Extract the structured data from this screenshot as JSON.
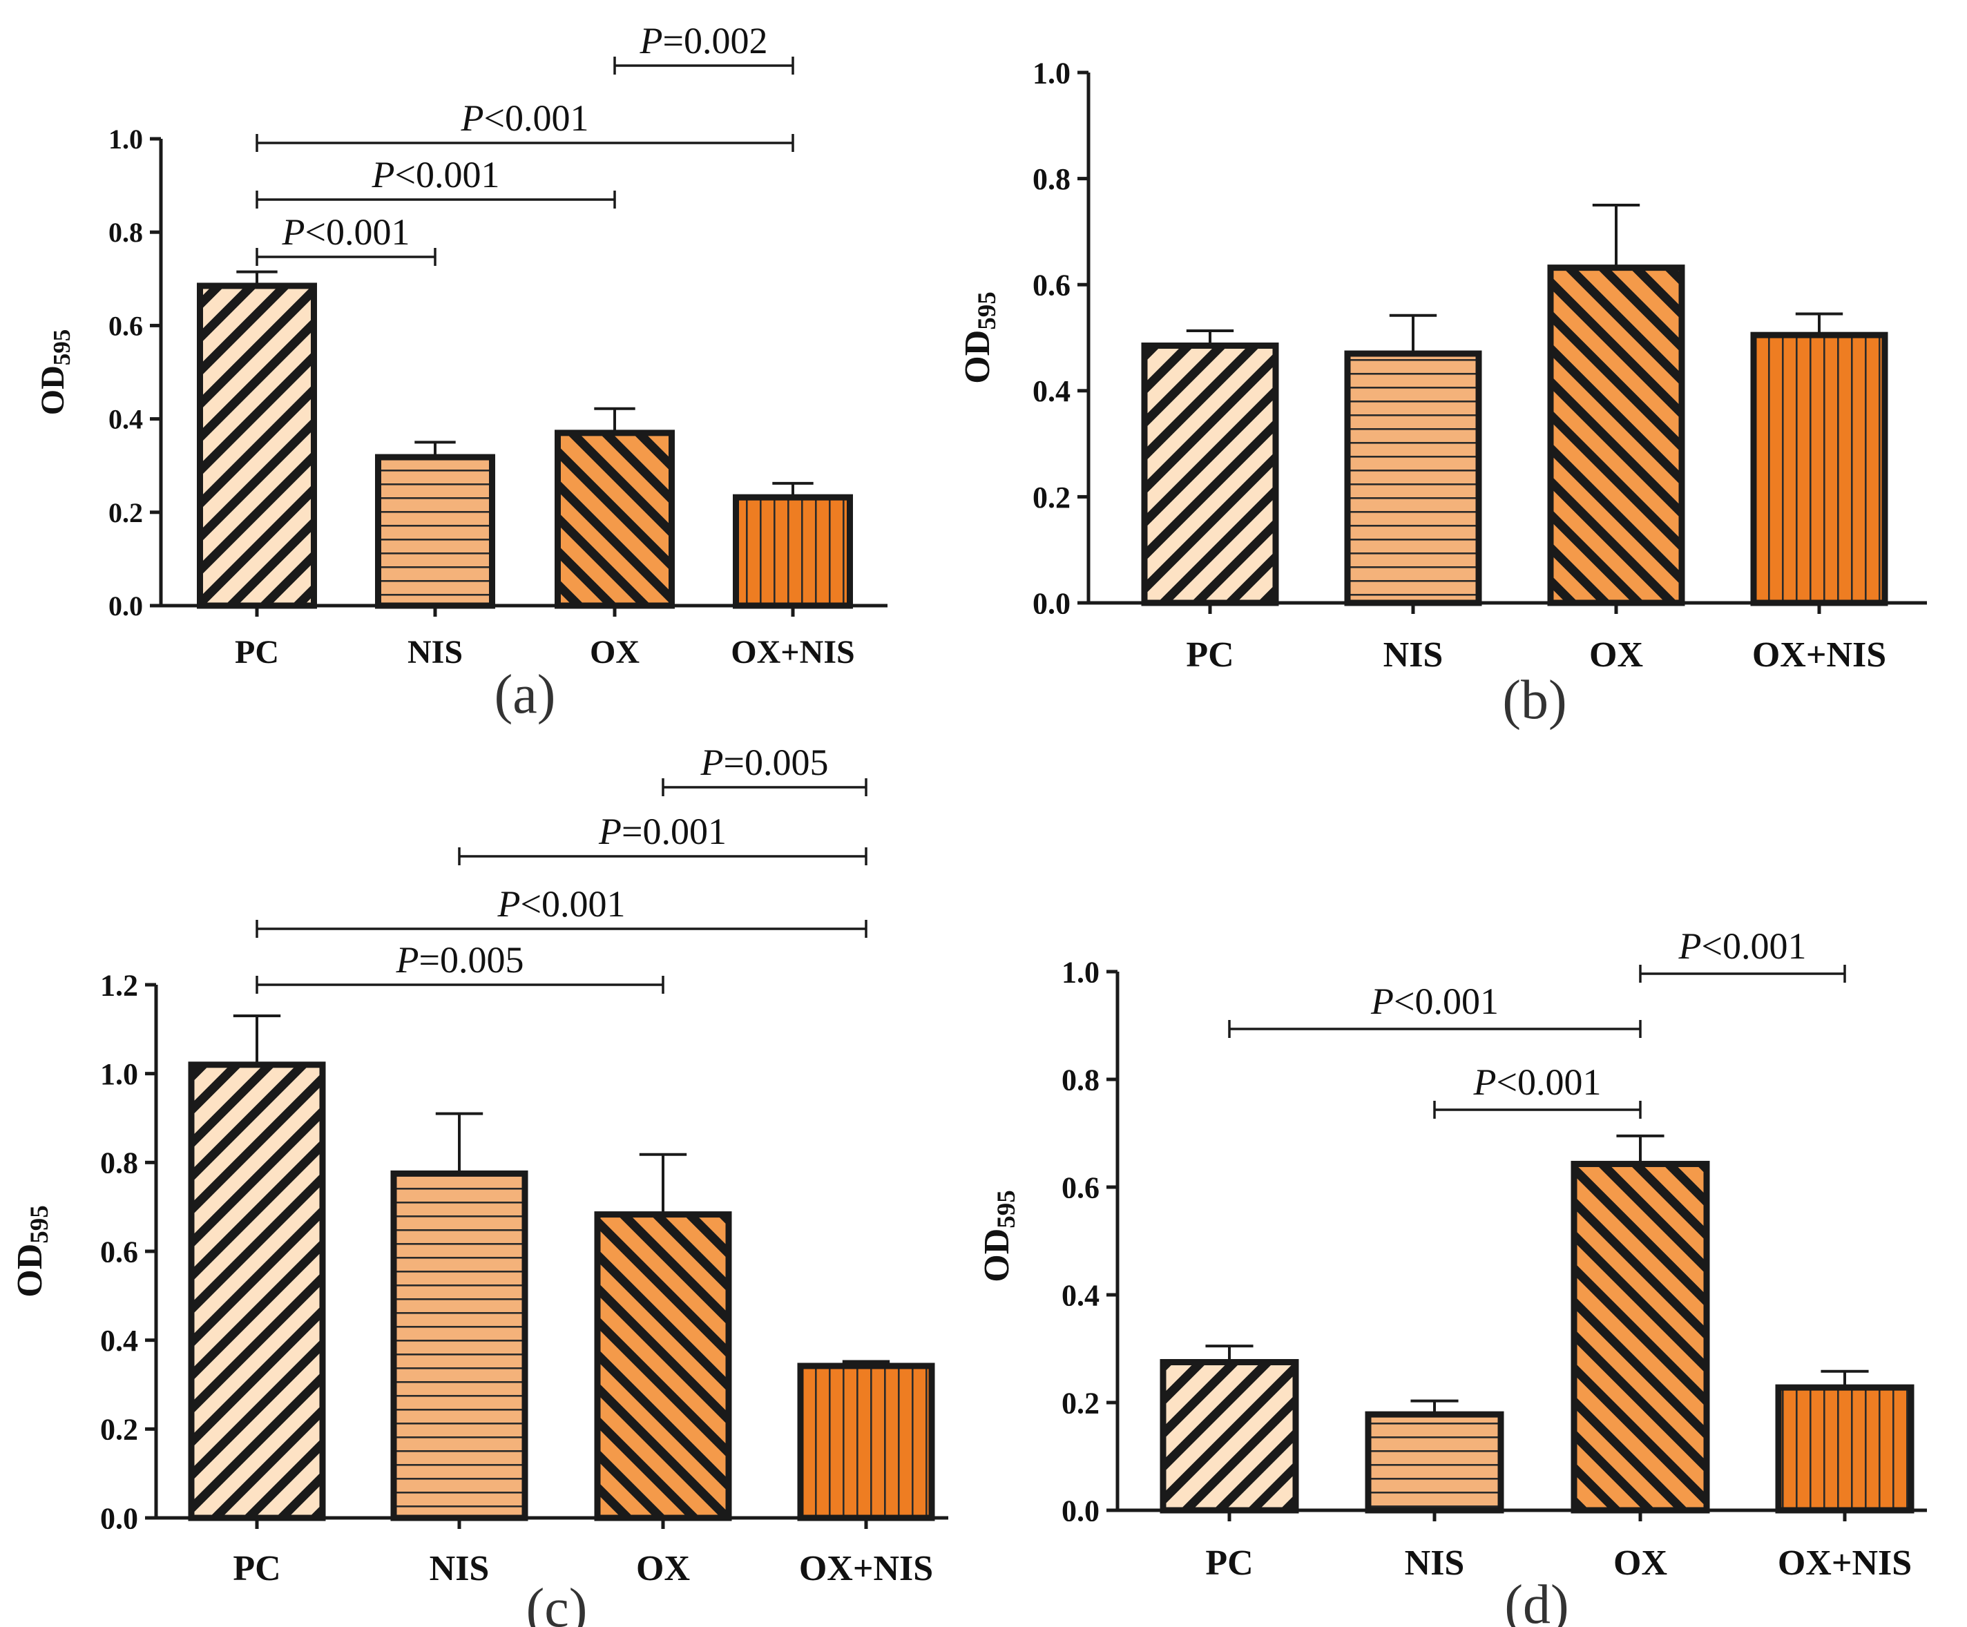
{
  "colors": {
    "light": "#fde2c4",
    "medium": "#f4b27a",
    "dark": "#f49a4a",
    "orange": "#ee7d22",
    "stroke": "#1a1a1a"
  },
  "chart_data": [
    {
      "panel": "(a)",
      "type": "bar",
      "ylabel": "OD",
      "ylabel_sub": "595",
      "ylim": [
        0,
        1.0
      ],
      "yticks": [
        0.0,
        0.2,
        0.4,
        0.6,
        0.8,
        1.0
      ],
      "ytick_labels": [
        "0.0",
        "0.2",
        "0.4",
        "0.6",
        "0.8",
        "1.0"
      ],
      "categories": [
        "PC",
        "NIS",
        "OX",
        "OX+NIS"
      ],
      "values": [
        0.685,
        0.318,
        0.37,
        0.232
      ],
      "errors": [
        0.03,
        0.032,
        0.052,
        0.03
      ],
      "brackets": [
        {
          "from": 0,
          "to": 1,
          "p": "P",
          "text": "<0.001"
        },
        {
          "from": 0,
          "to": 2,
          "p": "P",
          "text": "<0.001"
        },
        {
          "from": 0,
          "to": 3,
          "p": "P",
          "text": "<0.001"
        },
        {
          "from": 2,
          "to": 3,
          "p": "P",
          "text": "=0.002"
        }
      ]
    },
    {
      "panel": "(b)",
      "type": "bar",
      "ylabel": "OD",
      "ylabel_sub": "595",
      "ylim": [
        0,
        1.0
      ],
      "yticks": [
        0.0,
        0.2,
        0.4,
        0.6,
        0.8,
        1.0
      ],
      "ytick_labels": [
        "0.0",
        "0.2",
        "0.4",
        "0.6",
        "0.8",
        "1.0"
      ],
      "categories": [
        "PC",
        "NIS",
        "OX",
        "OX+NIS"
      ],
      "values": [
        0.485,
        0.47,
        0.632,
        0.505
      ],
      "errors": [
        0.028,
        0.072,
        0.118,
        0.04
      ],
      "brackets": []
    },
    {
      "panel": "(c)",
      "type": "bar",
      "ylabel": "OD",
      "ylabel_sub": "595",
      "ylim": [
        0,
        1.2
      ],
      "yticks": [
        0.0,
        0.2,
        0.4,
        0.6,
        0.8,
        1.0,
        1.2
      ],
      "ytick_labels": [
        "0.0",
        "0.2",
        "0.4",
        "0.6",
        "0.8",
        "1.0",
        "1.2"
      ],
      "categories": [
        "PC",
        "NIS",
        "OX",
        "OX+NIS"
      ],
      "values": [
        1.02,
        0.775,
        0.683,
        0.342
      ],
      "errors": [
        0.11,
        0.135,
        0.135,
        0.01
      ],
      "brackets": [
        {
          "from": 0,
          "to": 2,
          "p": "P",
          "text": "=0.005"
        },
        {
          "from": 0,
          "to": 3,
          "p": "P",
          "text": "<0.001"
        },
        {
          "from": 1,
          "to": 3,
          "p": "P",
          "text": "=0.001"
        },
        {
          "from": 2,
          "to": 3,
          "p": "P",
          "text": "=0.005"
        }
      ]
    },
    {
      "panel": "(d)",
      "type": "bar",
      "ylabel": "OD",
      "ylabel_sub": "595",
      "ylim": [
        0,
        1.0
      ],
      "yticks": [
        0.0,
        0.2,
        0.4,
        0.6,
        0.8,
        1.0
      ],
      "ytick_labels": [
        "0.0",
        "0.2",
        "0.4",
        "0.6",
        "0.8",
        "1.0"
      ],
      "categories": [
        "PC",
        "NIS",
        "OX",
        "OX+NIS"
      ],
      "values": [
        0.275,
        0.178,
        0.643,
        0.228
      ],
      "errors": [
        0.03,
        0.025,
        0.052,
        0.03
      ],
      "brackets": [
        {
          "from": 1,
          "to": 2,
          "p": "P",
          "text": "<0.001"
        },
        {
          "from": 0,
          "to": 2,
          "p": "P",
          "text": "<0.001"
        },
        {
          "from": 2,
          "to": 3,
          "p": "P",
          "text": "<0.001"
        }
      ]
    }
  ]
}
